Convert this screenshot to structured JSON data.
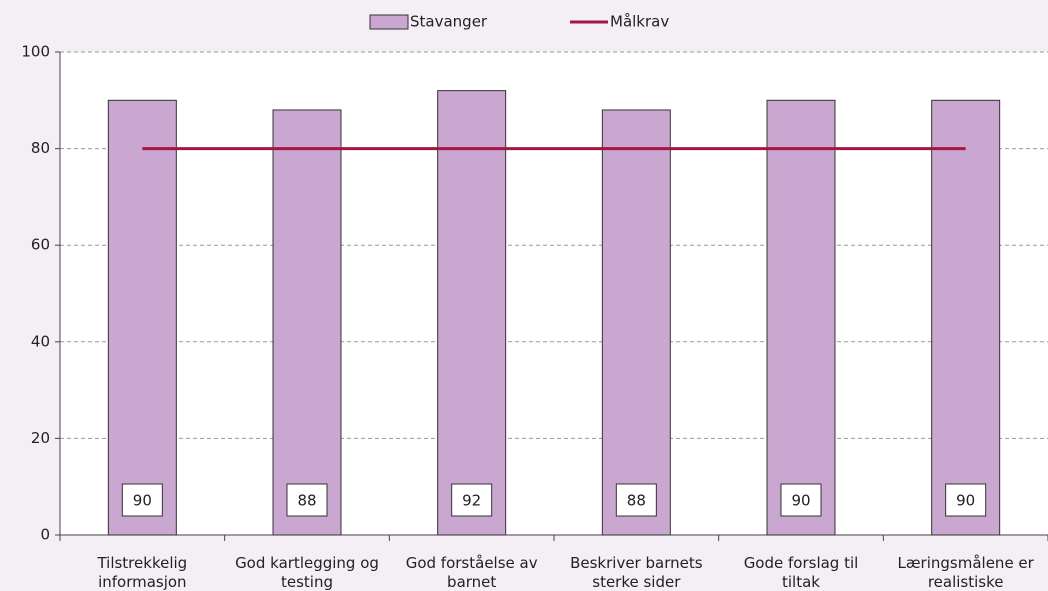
{
  "chart_data": {
    "type": "bar",
    "categories": [
      "Tilstrekkelig informasjon",
      "God kartlegging og testing",
      "God forståelse av barnet",
      "Beskriver barnets sterke sider",
      "Gode forslag til tiltak",
      "Læringsmålene er realistiske"
    ],
    "series": [
      {
        "name": "Stavanger",
        "type": "bar",
        "color": "#c9a7d1",
        "values": [
          90,
          88,
          92,
          88,
          90,
          90
        ]
      },
      {
        "name": "Målkrav",
        "type": "line",
        "color": "#a3163f",
        "values": [
          80,
          80,
          80,
          80,
          80,
          80
        ]
      }
    ],
    "ylim": [
      0,
      100
    ],
    "yticks": [
      0,
      20,
      40,
      60,
      80,
      100
    ],
    "grid": true,
    "legend": "top"
  }
}
